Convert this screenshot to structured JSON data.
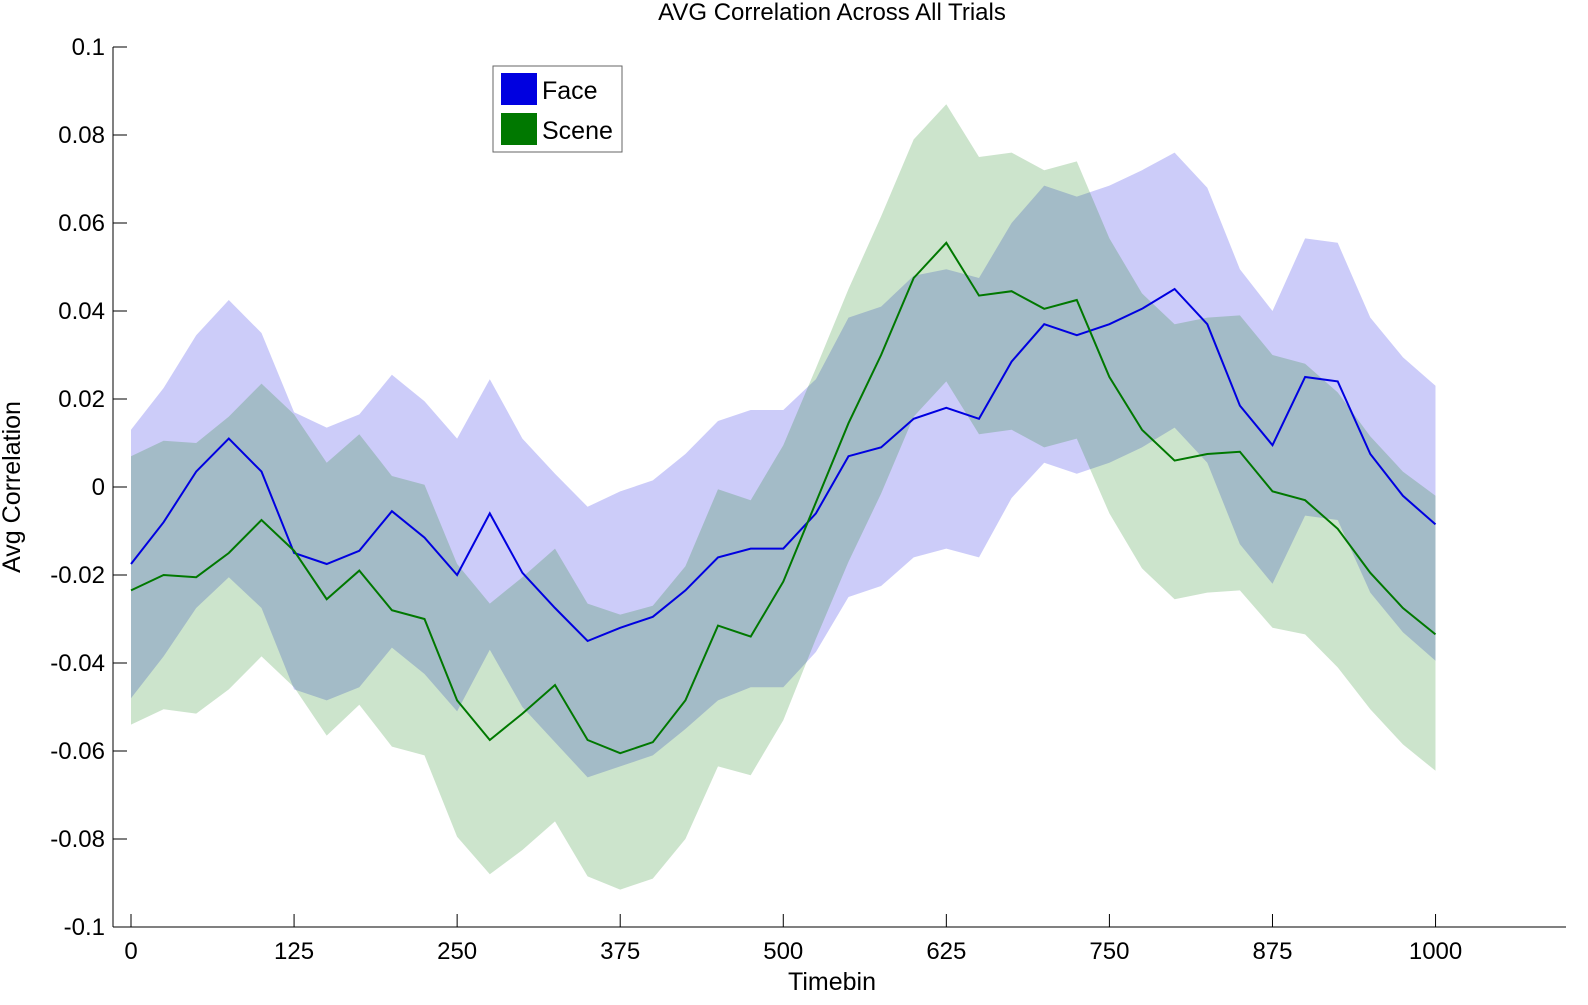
{
  "chart_data": {
    "type": "line",
    "title": "AVG Correlation Across All Trials",
    "xlabel": "Timebin",
    "ylabel": "Avg Correlation",
    "xlim": [
      0,
      1100
    ],
    "ylim": [
      -0.1,
      0.1
    ],
    "xticks": [
      0,
      125,
      250,
      375,
      500,
      625,
      750,
      875,
      1000
    ],
    "xtick_labels": [
      "0",
      "125",
      "250",
      "375",
      "500",
      "625",
      "750",
      "875",
      "1000"
    ],
    "yticks": [
      -0.1,
      -0.08,
      -0.06,
      -0.04,
      -0.02,
      0,
      0.02,
      0.04,
      0.06,
      0.08,
      0.1
    ],
    "ytick_labels": [
      "-0.1",
      "-0.08",
      "-0.06",
      "-0.04",
      "-0.02",
      "0",
      "0.02",
      "0.04",
      "0.06",
      "0.08",
      "0.1"
    ],
    "grid": false,
    "legend_position": "top-left",
    "x": [
      0,
      25,
      50,
      75,
      100,
      125,
      150,
      175,
      200,
      225,
      250,
      275,
      300,
      325,
      350,
      375,
      400,
      425,
      450,
      475,
      500,
      525,
      550,
      575,
      600,
      625,
      650,
      675,
      700,
      725,
      750,
      775,
      800,
      825,
      850,
      875,
      900,
      925,
      950,
      975,
      1000
    ],
    "series": [
      {
        "name": "Face",
        "color": "#0000e0",
        "fill_color": "#c6c6fb",
        "values": [
          -0.0175,
          -0.008,
          0.0035,
          0.011,
          0.0035,
          -0.015,
          -0.0175,
          -0.0145,
          -0.0055,
          -0.0115,
          -0.02,
          -0.006,
          -0.0195,
          -0.0275,
          -0.035,
          -0.032,
          -0.0295,
          -0.0235,
          -0.016,
          -0.014,
          -0.014,
          -0.006,
          0.007,
          0.009,
          0.0155,
          0.018,
          0.0155,
          0.0285,
          0.037,
          0.0345,
          0.037,
          0.0405,
          0.045,
          0.037,
          0.0185,
          0.0095,
          0.025,
          0.024,
          0.0075,
          -0.002,
          -0.0085
        ],
        "upper": [
          0.013,
          0.0225,
          0.0345,
          0.0425,
          0.035,
          0.017,
          0.0135,
          0.0165,
          0.0255,
          0.0195,
          0.011,
          0.0245,
          0.011,
          0.003,
          -0.0045,
          -0.001,
          0.0015,
          0.0075,
          0.015,
          0.0175,
          0.0175,
          0.0245,
          0.0385,
          0.041,
          0.048,
          0.0495,
          0.0475,
          0.06,
          0.0685,
          0.066,
          0.0685,
          0.072,
          0.076,
          0.068,
          0.0495,
          0.04,
          0.0565,
          0.0555,
          0.0385,
          0.0295,
          0.023
        ],
        "lower": [
          -0.048,
          -0.0385,
          -0.0275,
          -0.0205,
          -0.0275,
          -0.046,
          -0.0485,
          -0.0455,
          -0.0365,
          -0.0425,
          -0.051,
          -0.037,
          -0.05,
          -0.058,
          -0.066,
          -0.0635,
          -0.061,
          -0.055,
          -0.0485,
          -0.0455,
          -0.0455,
          -0.0375,
          -0.025,
          -0.0225,
          -0.016,
          -0.014,
          -0.016,
          -0.0025,
          0.0055,
          0.003,
          0.0055,
          0.009,
          0.0135,
          0.0055,
          -0.013,
          -0.022,
          -0.0065,
          -0.0075,
          -0.024,
          -0.033,
          -0.0395
        ]
      },
      {
        "name": "Scene",
        "color": "#007800",
        "fill_color": "#cce5cc",
        "values": [
          -0.0235,
          -0.02,
          -0.0205,
          -0.015,
          -0.0075,
          -0.0145,
          -0.0255,
          -0.019,
          -0.028,
          -0.03,
          -0.0485,
          -0.0575,
          -0.0515,
          -0.045,
          -0.0575,
          -0.0605,
          -0.058,
          -0.0485,
          -0.0315,
          -0.034,
          -0.0215,
          -0.0035,
          0.0145,
          0.03,
          0.0475,
          0.0555,
          0.0435,
          0.0445,
          0.0405,
          0.0425,
          0.025,
          0.013,
          0.006,
          0.0075,
          0.008,
          -0.001,
          -0.003,
          -0.0095,
          -0.0195,
          -0.0275,
          -0.0335
        ],
        "upper": [
          0.007,
          0.0105,
          0.01,
          0.016,
          0.0235,
          0.0165,
          0.0055,
          0.012,
          0.0025,
          0.0005,
          -0.0175,
          -0.0265,
          -0.0205,
          -0.014,
          -0.0265,
          -0.029,
          -0.027,
          -0.018,
          -0.0005,
          -0.003,
          0.0095,
          0.027,
          0.045,
          0.0615,
          0.079,
          0.087,
          0.075,
          0.076,
          0.072,
          0.074,
          0.0565,
          0.044,
          0.037,
          0.0385,
          0.039,
          0.03,
          0.028,
          0.0215,
          0.0115,
          0.0035,
          -0.002
        ],
        "lower": [
          -0.054,
          -0.0505,
          -0.0515,
          -0.046,
          -0.0385,
          -0.0455,
          -0.0565,
          -0.0495,
          -0.059,
          -0.061,
          -0.0795,
          -0.088,
          -0.0825,
          -0.076,
          -0.0885,
          -0.0915,
          -0.089,
          -0.08,
          -0.0635,
          -0.0655,
          -0.053,
          -0.0345,
          -0.017,
          -0.0015,
          0.016,
          0.024,
          0.012,
          0.013,
          0.009,
          0.011,
          -0.006,
          -0.0185,
          -0.0255,
          -0.024,
          -0.0235,
          -0.032,
          -0.0335,
          -0.041,
          -0.0505,
          -0.0585,
          -0.0645
        ]
      }
    ]
  }
}
